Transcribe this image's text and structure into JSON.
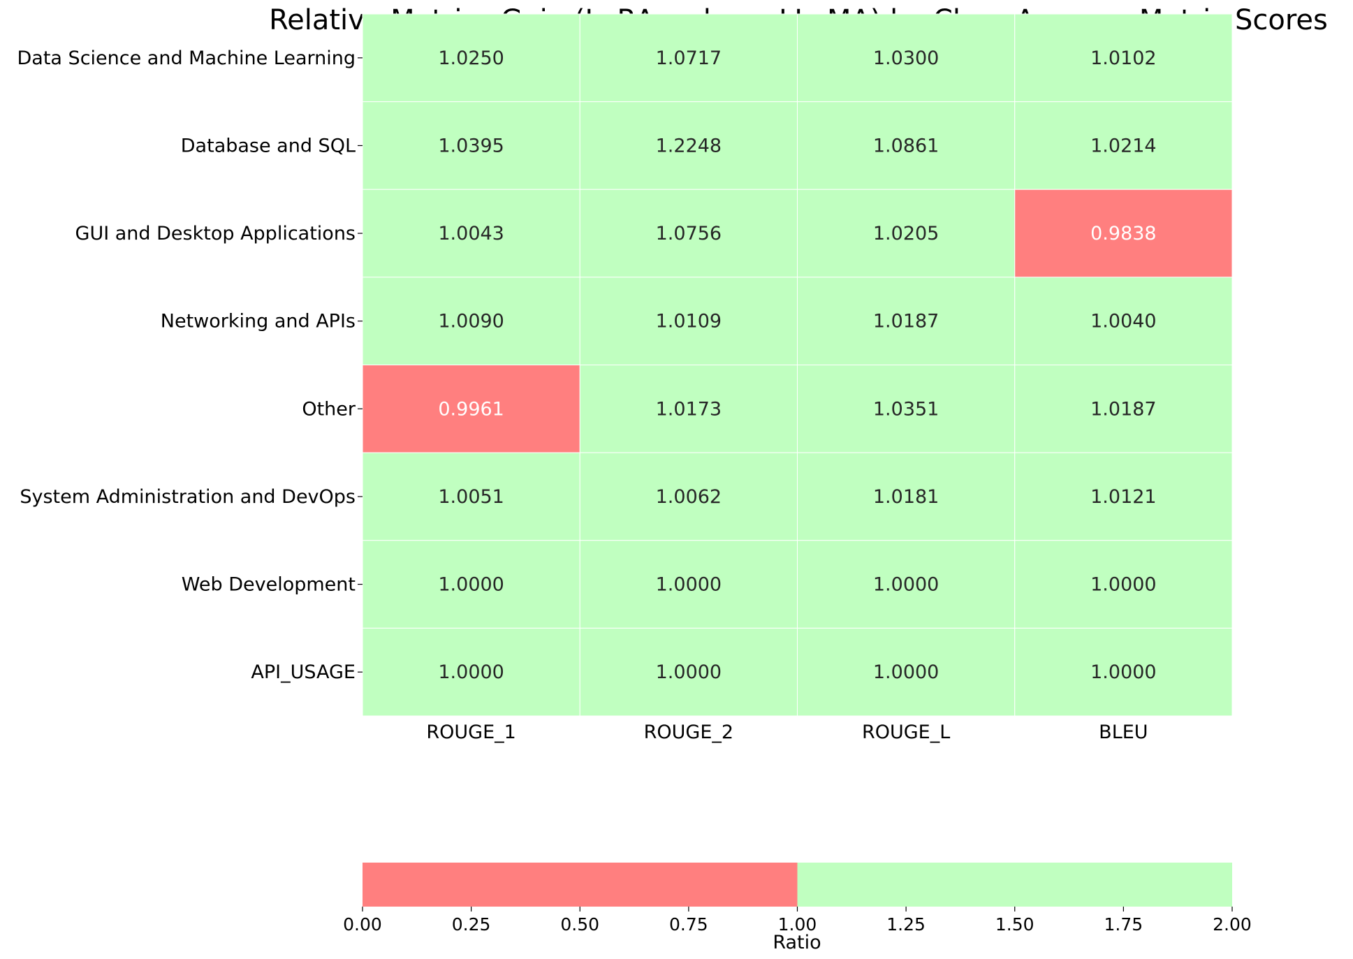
{
  "chart_data": {
    "type": "heatmap",
    "title": "Relative Metrics Gain (LoRA vs base LLaMA) by Class Average Metric Scores",
    "rows": [
      "Data Science and Machine Learning",
      "Database and SQL",
      "GUI and Desktop Applications",
      "Networking and APIs",
      "Other",
      "System Administration and DevOps",
      "Web Development",
      "API_USAGE"
    ],
    "columns": [
      "ROUGE_1",
      "ROUGE_2",
      "ROUGE_L",
      "BLEU"
    ],
    "values": [
      [
        1.025,
        1.0717,
        1.03,
        1.0102
      ],
      [
        1.0395,
        1.2248,
        1.0861,
        1.0214
      ],
      [
        1.0043,
        1.0756,
        1.0205,
        0.9838
      ],
      [
        1.009,
        1.0109,
        1.0187,
        1.004
      ],
      [
        0.9961,
        1.0173,
        1.0351,
        1.0187
      ],
      [
        1.0051,
        1.0062,
        1.0181,
        1.0121
      ],
      [
        1.0,
        1.0,
        1.0,
        1.0
      ],
      [
        1.0,
        1.0,
        1.0,
        1.0
      ]
    ],
    "value_labels": [
      [
        "1.0250",
        "1.0717",
        "1.0300",
        "1.0102"
      ],
      [
        "1.0395",
        "1.2248",
        "1.0861",
        "1.0214"
      ],
      [
        "1.0043",
        "1.0756",
        "1.0205",
        "0.9838"
      ],
      [
        "1.0090",
        "1.0109",
        "1.0187",
        "1.0040"
      ],
      [
        "0.9961",
        "1.0173",
        "1.0351",
        "1.0187"
      ],
      [
        "1.0051",
        "1.0062",
        "1.0181",
        "1.0121"
      ],
      [
        "1.0000",
        "1.0000",
        "1.0000",
        "1.0000"
      ],
      [
        "1.0000",
        "1.0000",
        "1.0000",
        "1.0000"
      ]
    ],
    "colormap": {
      "threshold": 1.0,
      "below_color": "#ff7f7f",
      "at_or_above_color": "#c0ffc0"
    },
    "colorbar": {
      "label": "Ratio",
      "range": [
        0.0,
        2.0
      ],
      "ticks": [
        0.0,
        0.25,
        0.5,
        0.75,
        1.0,
        1.25,
        1.5,
        1.75,
        2.0
      ],
      "tick_labels": [
        "0.00",
        "0.25",
        "0.50",
        "0.75",
        "1.00",
        "1.25",
        "1.50",
        "1.75",
        "2.00"
      ],
      "orientation": "horizontal",
      "placement": "bottom"
    },
    "text_colors": {
      "on_below": "#ffffff",
      "on_above": "#262626"
    }
  }
}
